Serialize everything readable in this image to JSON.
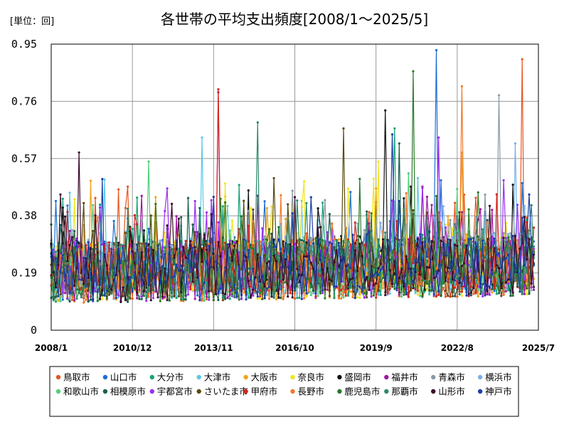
{
  "chart_data": {
    "type": "line",
    "title": "各世帯の平均支出頻度[2008/1～2025/5]",
    "unit_label": "[単位：回]",
    "xlabel": "",
    "ylabel": "",
    "x_range": [
      "2008/1",
      "2025/7"
    ],
    "x_ticks": [
      "2008/1",
      "2010/12",
      "2013/11",
      "2016/10",
      "2019/9",
      "2022/8",
      "2025/7"
    ],
    "ylim": [
      0,
      0.95
    ],
    "y_ticks": [
      "0",
      "0.19",
      "0.38",
      "0.57",
      "0.76",
      "0.95"
    ],
    "grid": true,
    "legend_position": "bottom",
    "n_points": 209,
    "series": [
      {
        "name": "鳥取市",
        "color": "#e8561e",
        "base": 0.19,
        "peak_x": "2024/12",
        "peak_y": 0.9
      },
      {
        "name": "山口市",
        "color": "#1a6fd6",
        "base": 0.2,
        "peak_x": "2021/11",
        "peak_y": 0.94
      },
      {
        "name": "大分市",
        "color": "#19a27a",
        "base": 0.19,
        "peak_x": "2020/5",
        "peak_y": 0.67
      },
      {
        "name": "大津市",
        "color": "#5bc8e8",
        "base": 0.2,
        "peak_x": "2013/6",
        "peak_y": 0.64
      },
      {
        "name": "大阪市",
        "color": "#f0a21c",
        "base": 0.19,
        "peak_x": "2022/10",
        "peak_y": 0.59
      },
      {
        "name": "奈良市",
        "color": "#f2e51a",
        "base": 0.19,
        "peak_x": "2019/10",
        "peak_y": 0.56
      },
      {
        "name": "盛岡市",
        "color": "#111111",
        "base": 0.2,
        "peak_x": "2020/1",
        "peak_y": 0.73
      },
      {
        "name": "福井市",
        "color": "#a2169e",
        "base": 0.19,
        "peak_x": "2014/1",
        "peak_y": 0.79
      },
      {
        "name": "青森市",
        "color": "#8a9aa6",
        "base": 0.2,
        "peak_x": "2024/2",
        "peak_y": 0.78
      },
      {
        "name": "横浜市",
        "color": "#7ab0e8",
        "base": 0.2,
        "peak_x": "2024/9",
        "peak_y": 0.62
      },
      {
        "name": "和歌山市",
        "color": "#4fd07a",
        "base": 0.19,
        "peak_x": "2011/7",
        "peak_y": 0.56
      },
      {
        "name": "相模原市",
        "color": "#17604e",
        "base": 0.19,
        "peak_x": "2020/7",
        "peak_y": 0.62
      },
      {
        "name": "宇都宮市",
        "color": "#9a2ef0",
        "base": 0.19,
        "peak_x": "2021/12",
        "peak_y": 0.64
      },
      {
        "name": "さいたま市",
        "color": "#5a4a10",
        "base": 0.19,
        "peak_x": "2018/7",
        "peak_y": 0.67
      },
      {
        "name": "甲府市",
        "color": "#d4281c",
        "base": 0.19,
        "peak_x": "2014/1",
        "peak_y": 0.8
      },
      {
        "name": "長野市",
        "color": "#f07a2a",
        "base": 0.19,
        "peak_x": "2022/10",
        "peak_y": 0.81
      },
      {
        "name": "鹿児島市",
        "color": "#2a7a2a",
        "base": 0.19,
        "peak_x": "2021/1",
        "peak_y": 0.86
      },
      {
        "name": "那覇市",
        "color": "#2a8a6a",
        "base": 0.19,
        "peak_x": "2015/6",
        "peak_y": 0.69
      },
      {
        "name": "山形市",
        "color": "#3a0a2a",
        "base": 0.19,
        "peak_x": "2009/1",
        "peak_y": 0.59
      },
      {
        "name": "神戸市",
        "color": "#1a3ea8",
        "base": 0.19,
        "peak_x": "2020/4",
        "peak_y": 0.65
      }
    ]
  }
}
